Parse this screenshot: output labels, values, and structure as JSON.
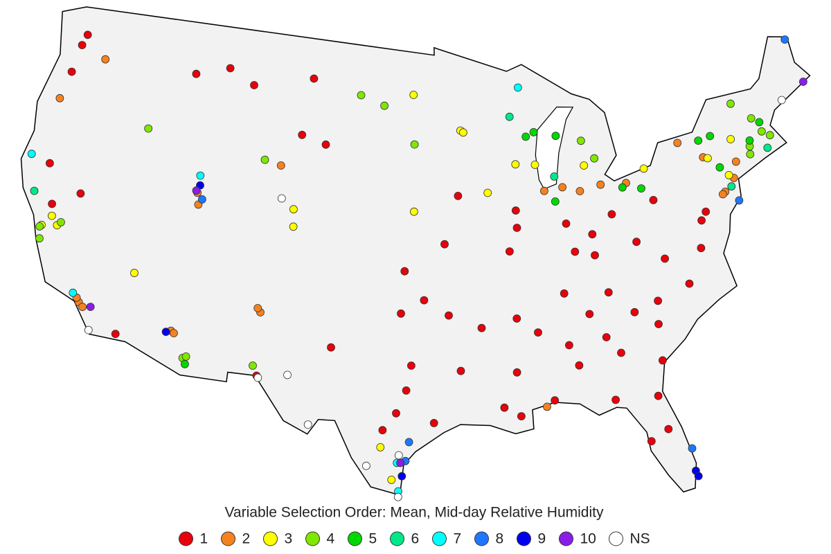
{
  "title": "Variable Selection Order: Mean, Mid-day Relative Humidity",
  "legend": [
    {
      "label": "1",
      "color": "#e8000b",
      "points": [
        [
          -84.4,
          33.7
        ],
        [
          -80.8,
          35.2
        ],
        [
          -78.6,
          35.8
        ],
        [
          -86.8,
          36.2
        ],
        [
          -90.0,
          35.1
        ],
        [
          -92.3,
          34.7
        ],
        [
          -96.8,
          32.8
        ],
        [
          -97.7,
          30.3
        ],
        [
          -98.5,
          29.4
        ],
        [
          -95.4,
          29.8
        ],
        [
          -97.5,
          35.5
        ],
        [
          -96.0,
          36.2
        ],
        [
          -94.6,
          39.1
        ],
        [
          -90.2,
          38.6
        ],
        [
          -86.2,
          39.8
        ],
        [
          -83.0,
          40.0
        ],
        [
          -85.8,
          38.3
        ],
        [
          -84.5,
          39.1
        ],
        [
          -86.8,
          33.5
        ],
        [
          -90.2,
          32.3
        ],
        [
          -90.1,
          30.0
        ],
        [
          -88.0,
          30.7
        ],
        [
          -91.1,
          30.5
        ],
        [
          -84.3,
          30.4
        ],
        [
          -81.7,
          30.3
        ],
        [
          -82.5,
          28.0
        ],
        [
          -81.4,
          28.5
        ],
        [
          -81.0,
          34.0
        ],
        [
          -77.4,
          37.5
        ],
        [
          -77.0,
          38.9
        ],
        [
          -76.6,
          39.3
        ],
        [
          -80.0,
          40.4
        ],
        [
          -83.9,
          36.0
        ],
        [
          -84.5,
          38.0
        ],
        [
          -89.6,
          39.8
        ],
        [
          -89.6,
          40.7
        ],
        [
          -93.6,
          41.6
        ],
        [
          -97.3,
          37.7
        ],
        [
          -93.7,
          32.5
        ],
        [
          -94.4,
          35.4
        ],
        [
          -82.4,
          34.8
        ],
        [
          -81.1,
          32.1
        ],
        [
          -83.6,
          32.8
        ],
        [
          -86.3,
          32.4
        ],
        [
          -88.7,
          34.3
        ],
        [
          -85.3,
          35.0
        ],
        [
          -79.9,
          37.3
        ],
        [
          -81.6,
          38.4
        ],
        [
          -122.3,
          47.6
        ],
        [
          -122.5,
          47.0
        ],
        [
          -122.7,
          45.5
        ],
        [
          -121.5,
          38.6
        ],
        [
          -119.8,
          39.5
        ],
        [
          -111.0,
          47.5
        ],
        [
          -109.0,
          46.8
        ],
        [
          -104.5,
          47.5
        ],
        [
          -113.5,
          46.9
        ],
        [
          -106.4,
          31.8
        ],
        [
          -105.0,
          44.5
        ],
        [
          -122.4,
          40.6
        ],
        [
          -115.5,
          32.8
        ],
        [
          -101.9,
          33.6
        ],
        [
          -97.1,
          31.5
        ],
        [
          -103.2,
          44.1
        ]
      ]
    },
    {
      "label": "2",
      "color": "#f58220",
      "points": [
        [
          -87.5,
          41.6
        ],
        [
          -86.2,
          41.7
        ],
        [
          -85.0,
          41.4
        ],
        [
          -83.5,
          41.6
        ],
        [
          -81.7,
          41.5
        ],
        [
          -76.0,
          42.1
        ],
        [
          -77.6,
          43.1
        ],
        [
          -75.0,
          40.1
        ],
        [
          -74.2,
          40.7
        ],
        [
          -73.8,
          41.5
        ],
        [
          -75.2,
          40.0
        ],
        [
          -111.9,
          40.8
        ],
        [
          -111.7,
          40.2
        ],
        [
          -118.2,
          34.0
        ],
        [
          -117.9,
          33.8
        ],
        [
          -118.4,
          34.2
        ],
        [
          -112.1,
          33.5
        ],
        [
          -111.9,
          33.4
        ],
        [
          -106.6,
          35.1
        ],
        [
          -106.8,
          35.3
        ],
        [
          -123.0,
          44.0
        ],
        [
          -120.5,
          46.6
        ],
        [
          -106.3,
          42.8
        ],
        [
          -88.5,
          30.4
        ]
      ]
    },
    {
      "label": "3",
      "color": "#ffff00",
      "points": [
        [
          -93.3,
          45.0
        ],
        [
          -93.1,
          44.9
        ],
        [
          -88.0,
          43.0
        ],
        [
          -89.4,
          43.1
        ],
        [
          -105.0,
          39.7
        ],
        [
          -105.1,
          40.6
        ],
        [
          -121.3,
          38.0
        ],
        [
          -120.8,
          37.6
        ],
        [
          -121.8,
          37.4
        ],
        [
          -96.8,
          46.9
        ],
        [
          -96.7,
          40.8
        ],
        [
          -91.5,
          41.7
        ],
        [
          -74.5,
          40.9
        ],
        [
          -75.7,
          42.0
        ],
        [
          -73.8,
          42.7
        ],
        [
          -80.3,
          42.1
        ],
        [
          -84.5,
          42.7
        ],
        [
          -97.9,
          26.8
        ],
        [
          -98.6,
          28.5
        ],
        [
          -115.1,
          36.1
        ]
      ]
    },
    {
      "label": "4",
      "color": "#80e800",
      "points": [
        [
          -71.0,
          42.4
        ],
        [
          -71.5,
          42.7
        ],
        [
          -72.6,
          42.1
        ],
        [
          -72.7,
          41.7
        ],
        [
          -73.2,
          44.5
        ],
        [
          -72.0,
          43.5
        ],
        [
          -121.9,
          37.3
        ],
        [
          -121.7,
          36.7
        ],
        [
          -120.6,
          37.8
        ],
        [
          -116.2,
          43.6
        ],
        [
          -107.5,
          43.0
        ],
        [
          -111.1,
          32.2
        ],
        [
          -110.9,
          32.3
        ],
        [
          -106.7,
          32.3
        ],
        [
          -84.5,
          44.0
        ],
        [
          -83.7,
          43.0
        ],
        [
          -96.7,
          44.3
        ],
        [
          -100.8,
          46.8
        ],
        [
          -99.0,
          46.3
        ]
      ]
    },
    {
      "label": "5",
      "color": "#00d800",
      "points": [
        [
          -86.3,
          44.4
        ],
        [
          -88.5,
          44.5
        ],
        [
          -87.9,
          44.7
        ],
        [
          -86.8,
          41.0
        ],
        [
          -80.7,
          41.1
        ],
        [
          -82.0,
          41.3
        ],
        [
          -76.1,
          43.0
        ],
        [
          -75.2,
          43.1
        ],
        [
          -71.5,
          43.2
        ],
        [
          -72.5,
          42.4
        ],
        [
          -110.9,
          31.9
        ],
        [
          -75.0,
          41.4
        ]
      ]
    },
    {
      "label": "6",
      "color": "#00e88a",
      "points": [
        [
          -89.6,
          45.6
        ],
        [
          -71.4,
          41.8
        ],
        [
          -74.5,
          40.3
        ],
        [
          -122.9,
          39.0
        ],
        [
          -86.7,
          42.3
        ]
      ]
    },
    {
      "label": "7",
      "color": "#00ffff",
      "points": [
        [
          -123.8,
          40.8
        ],
        [
          -118.7,
          34.4
        ],
        [
          -111.9,
          41.7
        ],
        [
          -97.6,
          27.7
        ],
        [
          -97.5,
          26.2
        ],
        [
          -88.8,
          47.1
        ]
      ]
    },
    {
      "label": "8",
      "color": "#1e78ff",
      "points": [
        [
          -68.0,
          47.0
        ],
        [
          -96.9,
          28.8
        ],
        [
          -74.2,
          39.5
        ],
        [
          -111.5,
          40.5
        ],
        [
          -97.1,
          27.8
        ],
        [
          -80.2,
          27.3
        ]
      ]
    },
    {
      "label": "9",
      "color": "#0000ee",
      "points": [
        [
          -112.4,
          33.4
        ],
        [
          -80.2,
          26.1
        ],
        [
          -80.1,
          25.8
        ],
        [
          -97.3,
          27.0
        ],
        [
          -111.8,
          41.2
        ]
      ]
    },
    {
      "label": "10",
      "color": "#8a1ee8",
      "points": [
        [
          -67.6,
          44.6
        ],
        [
          -97.4,
          27.7
        ],
        [
          -117.4,
          33.9
        ],
        [
          -112.0,
          40.9
        ]
      ]
    },
    {
      "label": "NS",
      "color": "#ffffff",
      "points": [
        [
          -104.5,
          32.0
        ],
        [
          -106.3,
          31.7
        ],
        [
          -117.2,
          32.7
        ],
        [
          -99.4,
          27.5
        ],
        [
          -97.5,
          25.9
        ],
        [
          -69.5,
          44.0
        ],
        [
          -106.0,
          41.1
        ],
        [
          -97.5,
          28.1
        ],
        [
          -103.0,
          29.5
        ]
      ]
    }
  ]
}
